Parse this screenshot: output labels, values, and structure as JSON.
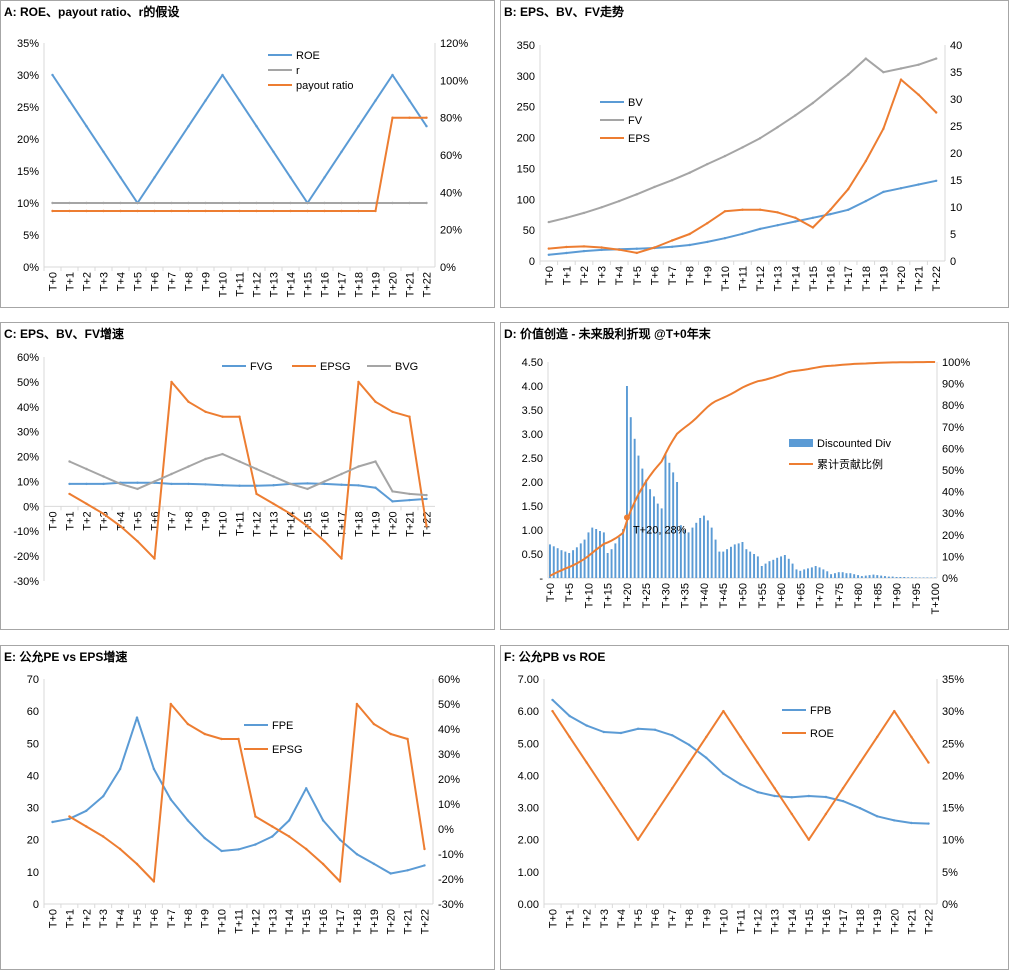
{
  "colors": {
    "blue": "#5B9BD5",
    "orange": "#ED7D31",
    "gray": "#A5A5A5",
    "frame": "#A6A6A6",
    "axis": "#D9D9D9"
  },
  "chart_data": [
    {
      "id": "A",
      "type": "line",
      "title": "A:  ROE、payout ratio、r的假设",
      "x": [
        "T+0",
        "T+1",
        "T+2",
        "T+3",
        "T+4",
        "T+5",
        "T+6",
        "T+7",
        "T+8",
        "T+9",
        "T+10",
        "T+11",
        "T+12",
        "T+13",
        "T+14",
        "T+15",
        "T+16",
        "T+17",
        "T+18",
        "T+19",
        "T+20",
        "T+21",
        "T+22"
      ],
      "y_left": {
        "min": 0,
        "max": 0.35,
        "ticks": [
          "0%",
          "5%",
          "10%",
          "15%",
          "20%",
          "25%",
          "30%",
          "35%"
        ]
      },
      "y_right": {
        "min": 0,
        "max": 1.2,
        "ticks": [
          "0%",
          "20%",
          "40%",
          "60%",
          "80%",
          "100%",
          "120%"
        ]
      },
      "legend_position": "top-right",
      "series": [
        {
          "name": "ROE",
          "axis": "left",
          "color": "blue",
          "values": [
            0.3,
            0.26,
            0.22,
            0.18,
            0.14,
            0.1,
            0.14,
            0.18,
            0.22,
            0.26,
            0.3,
            0.26,
            0.22,
            0.18,
            0.14,
            0.1,
            0.14,
            0.18,
            0.22,
            0.26,
            0.3,
            0.26,
            0.22
          ]
        },
        {
          "name": "r",
          "axis": "left",
          "color": "gray",
          "values": [
            0.1,
            0.1,
            0.1,
            0.1,
            0.1,
            0.1,
            0.1,
            0.1,
            0.1,
            0.1,
            0.1,
            0.1,
            0.1,
            0.1,
            0.1,
            0.1,
            0.1,
            0.1,
            0.1,
            0.1,
            0.1,
            0.1,
            0.1
          ]
        },
        {
          "name": "payout ratio",
          "axis": "right",
          "color": "orange",
          "values": [
            0.3,
            0.3,
            0.3,
            0.3,
            0.3,
            0.3,
            0.3,
            0.3,
            0.3,
            0.3,
            0.3,
            0.3,
            0.3,
            0.3,
            0.3,
            0.3,
            0.3,
            0.3,
            0.3,
            0.3,
            0.8,
            0.8,
            0.8
          ]
        }
      ]
    },
    {
      "id": "B",
      "type": "line",
      "title": "B: EPS、BV、FV走势",
      "x": [
        "T+0",
        "T+1",
        "T+2",
        "T+3",
        "T+4",
        "T+5",
        "T+6",
        "T+7",
        "T+8",
        "T+9",
        "T+10",
        "T+11",
        "T+12",
        "T+13",
        "T+14",
        "T+15",
        "T+16",
        "T+17",
        "T+18",
        "T+19",
        "T+20",
        "T+21",
        "T+22"
      ],
      "y_left": {
        "min": 0,
        "max": 350,
        "ticks": [
          "0",
          "50",
          "100",
          "150",
          "200",
          "250",
          "300",
          "350"
        ]
      },
      "y_right": {
        "min": 0,
        "max": 40,
        "ticks": [
          "0",
          "5",
          "10",
          "15",
          "20",
          "25",
          "30",
          "35",
          "40"
        ]
      },
      "legend_position": "left",
      "series": [
        {
          "name": "BV",
          "axis": "left",
          "color": "blue",
          "values": [
            10,
            13,
            16,
            18,
            19,
            20,
            21,
            23,
            26,
            31,
            37,
            44,
            52,
            58,
            64,
            70,
            76,
            83,
            97,
            112,
            118,
            124,
            130
          ]
        },
        {
          "name": "FV",
          "axis": "left",
          "color": "gray",
          "values": [
            63,
            70,
            78,
            87,
            97,
            108,
            120,
            131,
            143,
            157,
            170,
            184,
            199,
            217,
            236,
            256,
            279,
            302,
            328,
            306,
            312,
            318,
            328
          ]
        },
        {
          "name": "EPS",
          "axis": "right",
          "color": "orange",
          "values": [
            2.3,
            2.6,
            2.7,
            2.5,
            2.1,
            1.5,
            2.5,
            3.8,
            5.0,
            7.0,
            9.2,
            9.5,
            9.5,
            9.0,
            8.0,
            6.2,
            9.5,
            13.3,
            18.5,
            24.5,
            33.6,
            30.8,
            27.5
          ]
        }
      ]
    },
    {
      "id": "C",
      "type": "line",
      "title": "C: EPS、BV、FV增速",
      "x": [
        "T+0",
        "T+1",
        "T+2",
        "T+3",
        "T+4",
        "T+5",
        "T+6",
        "T+7",
        "T+8",
        "T+9",
        "T+10",
        "T+11",
        "T+12",
        "T+13",
        "T+14",
        "T+15",
        "T+16",
        "T+17",
        "T+18",
        "T+19",
        "T+20",
        "T+21",
        "T+22"
      ],
      "y_left": {
        "min": -0.3,
        "max": 0.6,
        "ticks": [
          "-30%",
          "-20%",
          "-10%",
          "0%",
          "10%",
          "20%",
          "30%",
          "40%",
          "50%",
          "60%"
        ]
      },
      "legend_position": "top",
      "series": [
        {
          "name": "FVG",
          "axis": "left",
          "color": "blue",
          "values": [
            null,
            0.09,
            0.09,
            0.09,
            0.095,
            0.095,
            0.095,
            0.09,
            0.09,
            0.088,
            0.085,
            0.083,
            0.083,
            0.085,
            0.09,
            0.092,
            0.09,
            0.087,
            0.084,
            0.075,
            0.02,
            0.025,
            0.03
          ]
        },
        {
          "name": "EPSG",
          "axis": "left",
          "color": "orange",
          "values": [
            null,
            0.05,
            0.01,
            -0.03,
            -0.08,
            -0.14,
            -0.21,
            0.5,
            0.42,
            0.38,
            0.36,
            0.36,
            0.05,
            0.01,
            -0.03,
            -0.08,
            -0.14,
            -0.21,
            0.5,
            0.42,
            0.38,
            0.36,
            -0.08
          ]
        },
        {
          "name": "BVG",
          "axis": "left",
          "color": "gray",
          "values": [
            null,
            0.18,
            0.15,
            0.12,
            0.09,
            0.07,
            0.1,
            0.13,
            0.16,
            0.19,
            0.21,
            0.18,
            0.15,
            0.12,
            0.09,
            0.07,
            0.1,
            0.13,
            0.16,
            0.18,
            0.06,
            0.05,
            0.045
          ]
        }
      ]
    },
    {
      "id": "D",
      "type": "bar+line",
      "title": "D:  价值创造 - 未来股利折现 @T+0年末",
      "x_tick_labels": [
        "T+0",
        "T+5",
        "T+10",
        "T+15",
        "T+20",
        "T+25",
        "T+30",
        "T+35",
        "T+40",
        "T+45",
        "T+50",
        "T+55",
        "T+60",
        "T+65",
        "T+70",
        "T+75",
        "T+80",
        "T+85",
        "T+90",
        "T+95",
        "T+100"
      ],
      "y_left": {
        "min": 0,
        "max": 4.5,
        "ticks": [
          "-",
          "0.50",
          "1.00",
          "1.50",
          "2.00",
          "2.50",
          "3.00",
          "3.50",
          "4.00",
          "4.50"
        ]
      },
      "y_right": {
        "min": 0,
        "max": 1.0,
        "ticks": [
          "0%",
          "10%",
          "20%",
          "30%",
          "40%",
          "50%",
          "60%",
          "70%",
          "80%",
          "90%",
          "100%"
        ]
      },
      "legend_position": "right",
      "annotation": {
        "text": "T+20, 28%",
        "x": 20,
        "y": 0.28
      },
      "series": [
        {
          "name": "Discounted Div",
          "axis": "left",
          "color": "blue",
          "values": [
            0.7,
            0.66,
            0.62,
            0.58,
            0.55,
            0.52,
            0.58,
            0.64,
            0.72,
            0.8,
            0.95,
            1.05,
            1.02,
            0.98,
            0.95,
            0.52,
            0.6,
            0.72,
            0.85,
            1.02,
            4.0,
            3.35,
            2.9,
            2.55,
            2.28,
            2.05,
            1.85,
            1.7,
            1.55,
            1.45,
            2.6,
            2.4,
            2.2,
            2.0,
            1.1,
            1.0,
            0.95,
            1.05,
            1.15,
            1.25,
            1.3,
            1.2,
            1.05,
            0.8,
            0.55,
            0.55,
            0.6,
            0.65,
            0.7,
            0.72,
            0.75,
            0.6,
            0.55,
            0.5,
            0.45,
            0.25,
            0.3,
            0.35,
            0.38,
            0.42,
            0.45,
            0.48,
            0.4,
            0.3,
            0.18,
            0.15,
            0.18,
            0.2,
            0.22,
            0.25,
            0.22,
            0.18,
            0.14,
            0.08,
            0.1,
            0.12,
            0.12,
            0.1,
            0.1,
            0.08,
            0.06,
            0.04,
            0.05,
            0.06,
            0.07,
            0.06,
            0.05,
            0.04,
            0.03,
            0.03,
            0.02,
            0.02,
            0.02,
            0.015,
            0.015,
            0.012,
            0.01,
            0.01,
            0.01,
            0.008,
            0.008
          ]
        },
        {
          "name": "累计贡献比例",
          "axis": "right",
          "color": "orange",
          "cumulative": true
        }
      ]
    },
    {
      "id": "E",
      "type": "line",
      "title": "E:  公允PE vs EPS增速",
      "x": [
        "T+0",
        "T+1",
        "T+2",
        "T+3",
        "T+4",
        "T+5",
        "T+6",
        "T+7",
        "T+8",
        "T+9",
        "T+10",
        "T+11",
        "T+12",
        "T+13",
        "T+14",
        "T+15",
        "T+16",
        "T+17",
        "T+18",
        "T+19",
        "T+20",
        "T+21",
        "T+22"
      ],
      "y_left": {
        "min": 0,
        "max": 70,
        "ticks": [
          "0",
          "10",
          "20",
          "30",
          "40",
          "50",
          "60",
          "70"
        ]
      },
      "y_right": {
        "min": -0.3,
        "max": 0.6,
        "ticks": [
          "-30%",
          "-20%",
          "-10%",
          "0%",
          "10%",
          "20%",
          "30%",
          "40%",
          "50%",
          "60%"
        ]
      },
      "legend_position": "center",
      "series": [
        {
          "name": "FPE",
          "axis": "left",
          "color": "blue",
          "values": [
            25.5,
            26.5,
            29,
            33.5,
            42,
            58,
            42,
            32.5,
            26,
            20.5,
            16.5,
            17,
            18.5,
            21,
            26,
            36,
            26,
            20,
            15.5,
            12.5,
            9.5,
            10.5,
            12
          ]
        },
        {
          "name": "EPSG",
          "axis": "right",
          "color": "orange",
          "values": [
            null,
            0.05,
            0.01,
            -0.03,
            -0.08,
            -0.14,
            -0.21,
            0.5,
            0.42,
            0.38,
            0.36,
            0.36,
            0.05,
            0.01,
            -0.03,
            -0.08,
            -0.14,
            -0.21,
            0.5,
            0.42,
            0.38,
            0.36,
            -0.08
          ]
        }
      ]
    },
    {
      "id": "F",
      "type": "line",
      "title": "F:  公允PB vs ROE",
      "x": [
        "T+0",
        "T+1",
        "T+2",
        "T+3",
        "T+4",
        "T+5",
        "T+6",
        "T+7",
        "T+8",
        "T+9",
        "T+10",
        "T+11",
        "T+12",
        "T+13",
        "T+14",
        "T+15",
        "T+16",
        "T+17",
        "T+18",
        "T+19",
        "T+20",
        "T+21",
        "T+22"
      ],
      "y_left": {
        "min": 0,
        "max": 7,
        "ticks": [
          "0.00",
          "1.00",
          "2.00",
          "3.00",
          "4.00",
          "5.00",
          "6.00",
          "7.00"
        ]
      },
      "y_right": {
        "min": 0,
        "max": 0.35,
        "ticks": [
          "0%",
          "5%",
          "10%",
          "15%",
          "20%",
          "25%",
          "30%",
          "35%"
        ]
      },
      "legend_position": "top-center",
      "series": [
        {
          "name": "FPB",
          "axis": "left",
          "color": "blue",
          "values": [
            6.35,
            5.85,
            5.55,
            5.35,
            5.32,
            5.45,
            5.42,
            5.25,
            4.95,
            4.55,
            4.05,
            3.72,
            3.48,
            3.36,
            3.32,
            3.36,
            3.33,
            3.2,
            2.98,
            2.73,
            2.6,
            2.52,
            2.5
          ]
        },
        {
          "name": "ROE",
          "axis": "right",
          "color": "orange",
          "values": [
            0.3,
            0.26,
            0.22,
            0.18,
            0.14,
            0.1,
            0.14,
            0.18,
            0.22,
            0.26,
            0.3,
            0.26,
            0.22,
            0.18,
            0.14,
            0.1,
            0.14,
            0.18,
            0.22,
            0.26,
            0.3,
            0.26,
            0.22
          ]
        }
      ]
    }
  ]
}
